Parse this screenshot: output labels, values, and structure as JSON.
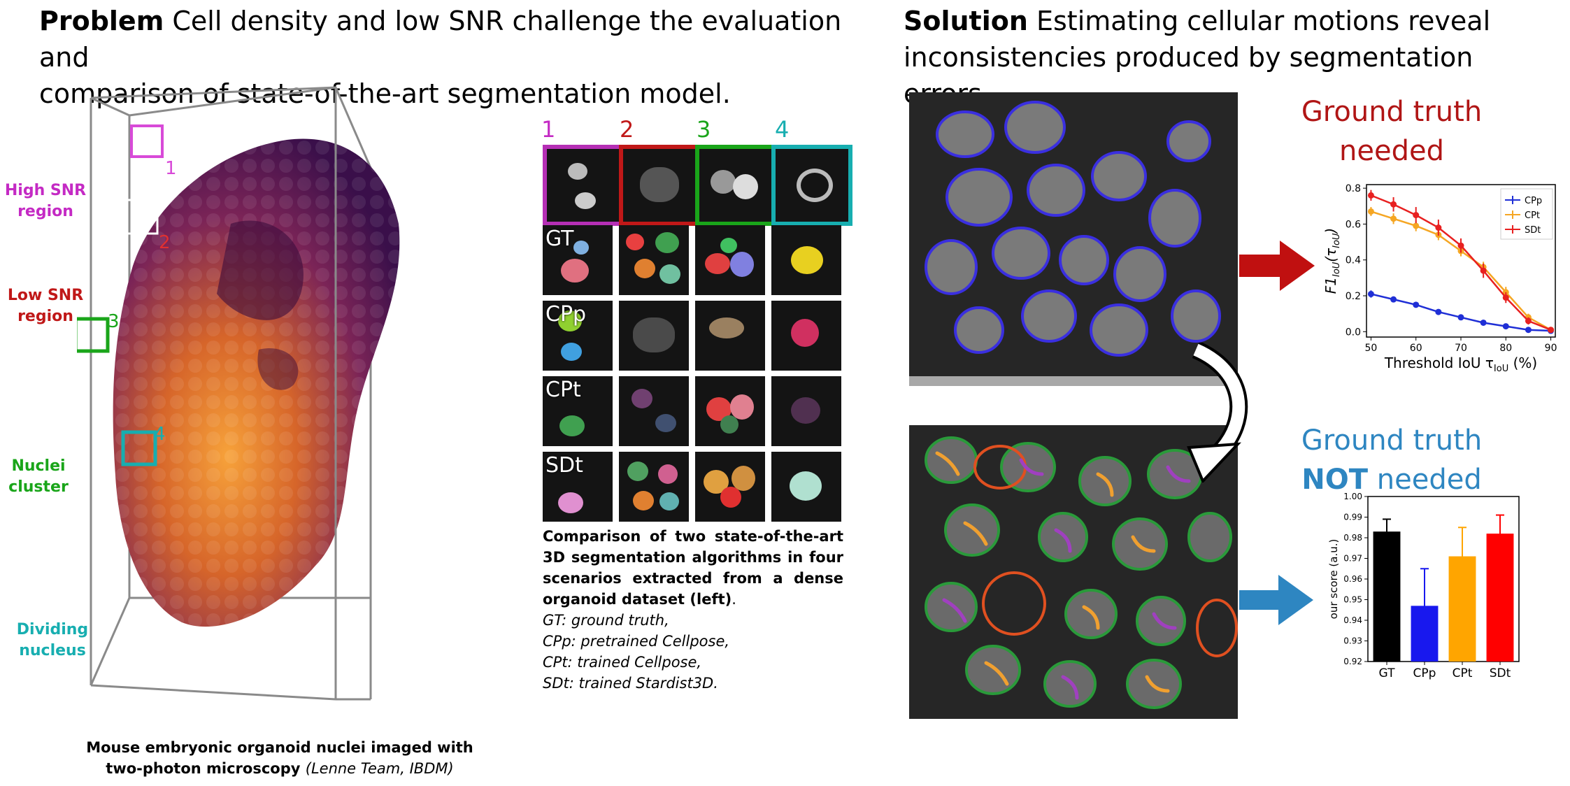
{
  "left": {
    "heading_bold": "Problem",
    "heading_line1": " Cell density and low SNR challenge the evaluation and",
    "heading_line2": "comparison of state-of-the-art segmentation model.",
    "regions": [
      {
        "l1": "High SNR",
        "l2": "region",
        "num": "1",
        "color": "#c42ac4"
      },
      {
        "l1": "Low SNR",
        "l2": "region",
        "num": "2",
        "color": "#c01818"
      },
      {
        "l1": "Nuclei",
        "l2": "cluster",
        "num": "3",
        "color": "#1aa51a"
      },
      {
        "l1": "Dividing",
        "l2": "nucleus",
        "num": "4",
        "color": "#17aeb0"
      }
    ],
    "caption_line1": "Mouse embryonic organoid nuclei imaged with",
    "caption_line2_bold": "two-photon microscopy ",
    "caption_line2_italic": "(Lenne Team, IBDM)"
  },
  "grid": {
    "col_numbers": [
      "1",
      "2",
      "3",
      "4"
    ],
    "row_labels": [
      "GT",
      "CPp",
      "CPt",
      "SDt"
    ],
    "caption_bold": [
      "Comparison of two state-of-the-art",
      "3D segmentation algorithms in four",
      "scenarios extracted from a dense",
      "organoid dataset (left)"
    ],
    "caption_bold_end": ".",
    "caption_italic": [
      "GT: ground truth,",
      "CPp: pretrained Cellpose,",
      "CPt: trained Cellpose,",
      "SDt: trained Stardist3D."
    ]
  },
  "right": {
    "heading_bold": "Solution",
    "heading_line1": " Estimating cellular motions reveal",
    "heading_line2": "inconsistencies produced by segmentation errors.",
    "gt_needed_l1": "Ground truth",
    "gt_needed_l2": "needed",
    "gt_not_l1": "Ground truth",
    "gt_not_bold": "NOT",
    "gt_not_rest": " needed",
    "colors": {
      "needed": "#b01515",
      "not_needed": "#2e86c1"
    }
  },
  "chart_data": [
    {
      "type": "line",
      "xlabel": "Threshold IoU τ",
      "xlabel_sub": "IoU",
      "xlabel_unit": " (%)",
      "ylabel": "F1",
      "ylabel_sub": "IoU",
      "ylabel_arg": "(τ",
      "ylabel_arg_sub": "IoU",
      "ylabel_close": ")",
      "x": [
        50,
        55,
        60,
        65,
        70,
        75,
        80,
        85,
        90
      ],
      "xlim": [
        49,
        91
      ],
      "ylim": [
        -0.03,
        0.82
      ],
      "xticks": [
        50,
        60,
        70,
        80,
        90
      ],
      "yticks": [
        0.0,
        0.2,
        0.4,
        0.6,
        0.8
      ],
      "ytick_labels": [
        "0.0",
        "0.2",
        "0.4",
        "0.6",
        "0.8"
      ],
      "legend_position": "top-right",
      "series": [
        {
          "name": "CPp",
          "color": "#1f2fd6",
          "values": [
            0.21,
            0.18,
            0.15,
            0.11,
            0.08,
            0.05,
            0.03,
            0.01,
            0.005
          ],
          "err": [
            0.02,
            0.015,
            0.01,
            0.01,
            0.008,
            0.005,
            0.004,
            0.003,
            0.002
          ]
        },
        {
          "name": "CPt",
          "color": "#f5a623",
          "values": [
            0.67,
            0.63,
            0.59,
            0.54,
            0.45,
            0.36,
            0.22,
            0.08,
            0.01
          ],
          "err": [
            0.025,
            0.03,
            0.03,
            0.03,
            0.03,
            0.03,
            0.03,
            0.02,
            0.005
          ]
        },
        {
          "name": "SDt",
          "color": "#e82020",
          "values": [
            0.76,
            0.71,
            0.65,
            0.58,
            0.48,
            0.34,
            0.19,
            0.06,
            0.01
          ],
          "err": [
            0.03,
            0.04,
            0.045,
            0.045,
            0.04,
            0.04,
            0.03,
            0.02,
            0.005
          ]
        }
      ]
    },
    {
      "type": "bar",
      "ylabel": "our score (a.u.)",
      "categories": [
        "GT",
        "CPp",
        "CPt",
        "SDt"
      ],
      "values": [
        0.983,
        0.947,
        0.971,
        0.982
      ],
      "err": [
        0.006,
        0.018,
        0.014,
        0.009
      ],
      "colors": [
        "#000000",
        "#1818ee",
        "#ffa500",
        "#ff0000"
      ],
      "ylim": [
        0.92,
        1.0
      ],
      "yticks": [
        0.92,
        0.93,
        0.94,
        0.95,
        0.96,
        0.97,
        0.98,
        0.99,
        1.0
      ],
      "ytick_labels": [
        "0.92",
        "0.93",
        "0.94",
        "0.95",
        "0.96",
        "0.97",
        "0.98",
        "0.99",
        "1.00"
      ]
    }
  ]
}
